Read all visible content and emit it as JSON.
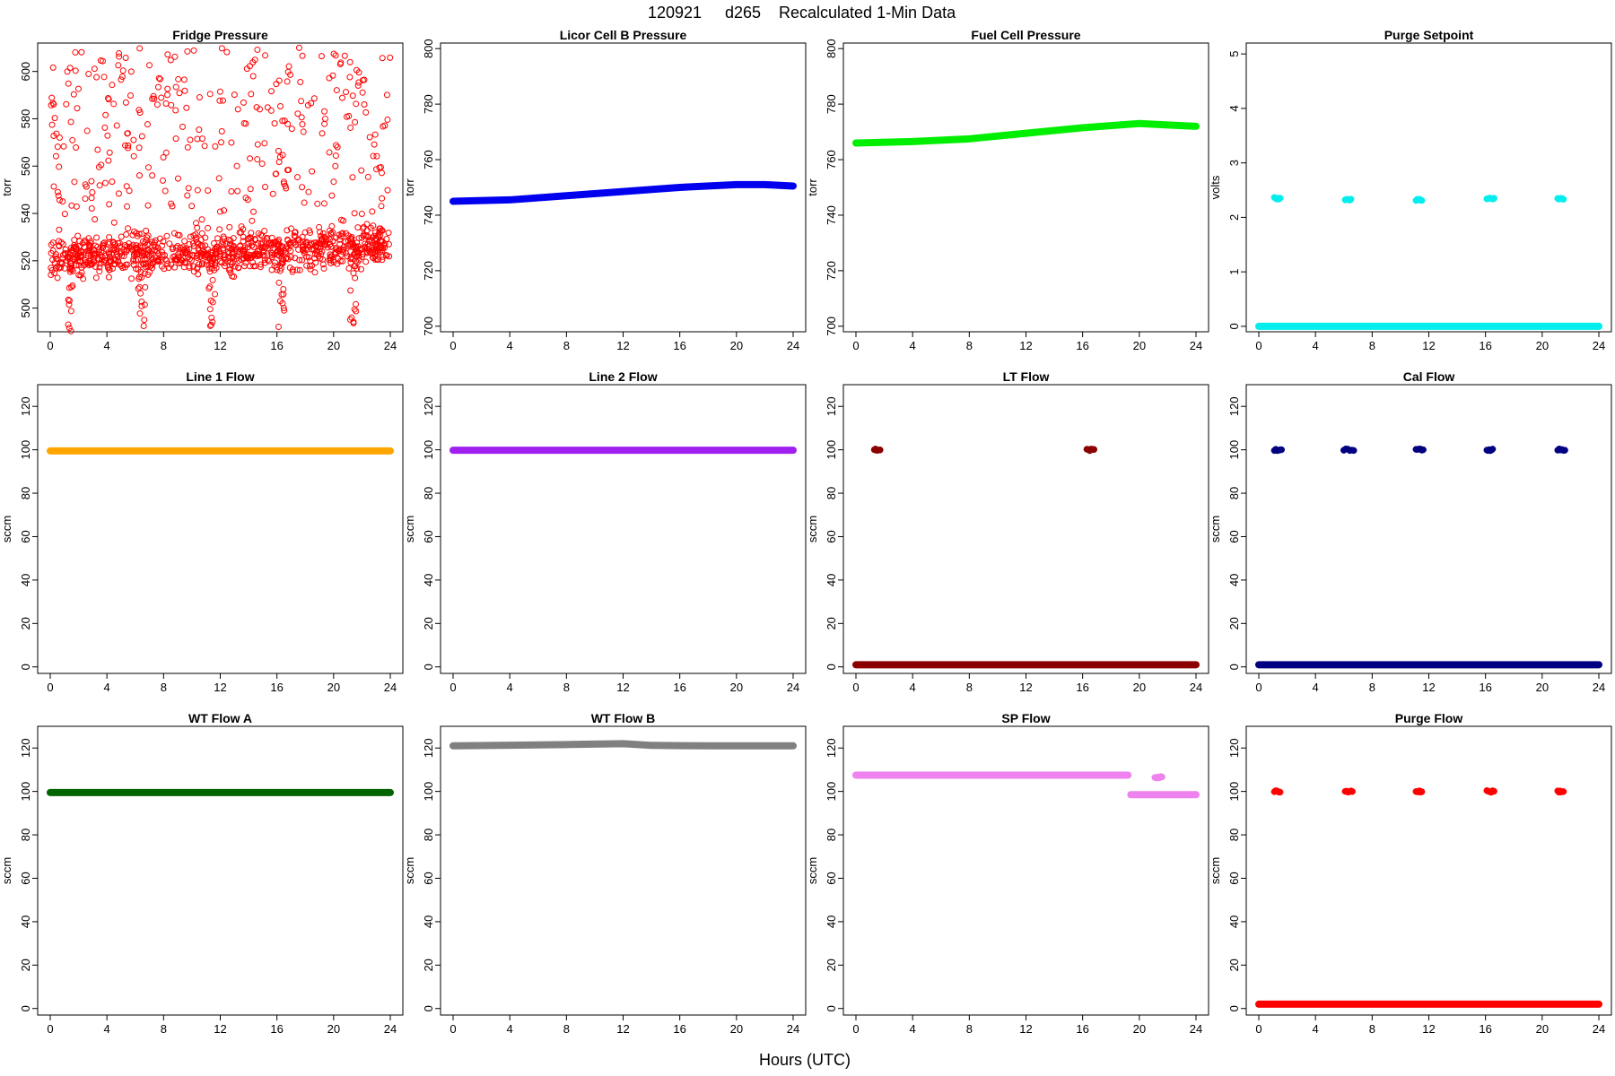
{
  "figure": {
    "title_date": "120921",
    "title_day": "d265",
    "title_desc": "Recalculated 1-Min Data",
    "xlabel": "Hours (UTC)"
  },
  "chart_data": [
    {
      "id": "fridge-pressure",
      "type": "scatter",
      "title": "Fridge Pressure",
      "ylabel": "torr",
      "color": "#ff0000",
      "marker": "open-circle",
      "xlim": [
        0,
        24
      ],
      "xticks": [
        0,
        4,
        8,
        12,
        16,
        20,
        24
      ],
      "ylim": [
        490,
        612
      ],
      "yticks": [
        500,
        520,
        540,
        560,
        580,
        600
      ],
      "series": [
        {
          "kind": "band",
          "x": [
            0,
            24
          ],
          "y": [
            521,
            526
          ],
          "spread": 9
        },
        {
          "kind": "scatter-range",
          "x": [
            0,
            24
          ],
          "y": [
            527,
            610
          ],
          "count": 320
        },
        {
          "kind": "dip",
          "x": [
            1.2,
            1.6
          ],
          "y": [
            490,
            525
          ]
        },
        {
          "kind": "dip",
          "x": [
            6.2,
            6.7
          ],
          "y": [
            491,
            525
          ]
        },
        {
          "kind": "dip",
          "x": [
            11.2,
            11.7
          ],
          "y": [
            492,
            525
          ]
        },
        {
          "kind": "dip",
          "x": [
            16.1,
            16.6
          ],
          "y": [
            492,
            525
          ]
        },
        {
          "kind": "dip",
          "x": [
            21.1,
            21.6
          ],
          "y": [
            493,
            525
          ]
        }
      ]
    },
    {
      "id": "licor-cell-b-pressure",
      "type": "line",
      "title": "Licor Cell B Pressure",
      "ylabel": "torr",
      "color": "#0000ee",
      "xlim": [
        0,
        24
      ],
      "xticks": [
        0,
        4,
        8,
        12,
        16,
        20,
        24
      ],
      "ylim": [
        698,
        802
      ],
      "yticks": [
        700,
        720,
        740,
        760,
        780,
        800
      ],
      "series": [
        {
          "x": [
            0,
            4,
            8,
            12,
            16,
            20,
            22,
            24
          ],
          "y": [
            745,
            745.5,
            747,
            748.5,
            750,
            751,
            751,
            750.5
          ]
        }
      ]
    },
    {
      "id": "fuel-cell-pressure",
      "type": "line",
      "title": "Fuel Cell Pressure",
      "ylabel": "torr",
      "color": "#00ee00",
      "xlim": [
        0,
        24
      ],
      "xticks": [
        0,
        4,
        8,
        12,
        16,
        20,
        24
      ],
      "ylim": [
        698,
        802
      ],
      "yticks": [
        700,
        720,
        740,
        760,
        780,
        800
      ],
      "series": [
        {
          "x": [
            0,
            4,
            8,
            12,
            16,
            20,
            22,
            24
          ],
          "y": [
            766,
            766.5,
            767.5,
            769.5,
            771.5,
            773,
            772.5,
            772
          ]
        }
      ]
    },
    {
      "id": "purge-setpoint",
      "type": "scatter",
      "title": "Purge Setpoint",
      "ylabel": "volts",
      "color": "#00eeee",
      "xlim": [
        0,
        24
      ],
      "xticks": [
        0,
        4,
        8,
        12,
        16,
        20,
        24
      ],
      "ylim": [
        -0.1,
        5.2
      ],
      "yticks": [
        0,
        1,
        2,
        3,
        4,
        5
      ],
      "series": [
        {
          "kind": "line",
          "x": [
            0,
            24
          ],
          "y": [
            0,
            0
          ]
        },
        {
          "kind": "cluster",
          "x": [
            1.1,
            1.5
          ],
          "y": [
            2.35,
            2.35
          ]
        },
        {
          "kind": "cluster",
          "x": [
            6.1,
            6.5
          ],
          "y": [
            2.33,
            2.33
          ]
        },
        {
          "kind": "cluster",
          "x": [
            11.1,
            11.5
          ],
          "y": [
            2.32,
            2.32
          ]
        },
        {
          "kind": "cluster",
          "x": [
            16.1,
            16.6
          ],
          "y": [
            2.35,
            2.35
          ]
        },
        {
          "kind": "cluster",
          "x": [
            21.1,
            21.5
          ],
          "y": [
            2.34,
            2.34
          ]
        }
      ]
    },
    {
      "id": "line-1-flow",
      "type": "line",
      "title": "Line 1 Flow",
      "ylabel": "sccm",
      "color": "#ffa500",
      "xlim": [
        0,
        24
      ],
      "xticks": [
        0,
        4,
        8,
        12,
        16,
        20,
        24
      ],
      "ylim": [
        -3,
        130
      ],
      "yticks": [
        0,
        20,
        40,
        60,
        80,
        100,
        120
      ],
      "series": [
        {
          "x": [
            0,
            24
          ],
          "y": [
            99.5,
            99.5
          ]
        }
      ]
    },
    {
      "id": "line-2-flow",
      "type": "line",
      "title": "Line 2 Flow",
      "ylabel": "sccm",
      "color": "#a020f0",
      "xlim": [
        0,
        24
      ],
      "xticks": [
        0,
        4,
        8,
        12,
        16,
        20,
        24
      ],
      "ylim": [
        -3,
        130
      ],
      "yticks": [
        0,
        20,
        40,
        60,
        80,
        100,
        120
      ],
      "series": [
        {
          "x": [
            0,
            24
          ],
          "y": [
            99.8,
            99.8
          ]
        }
      ]
    },
    {
      "id": "lt-flow",
      "type": "scatter",
      "title": "LT Flow",
      "ylabel": "sccm",
      "color": "#8b0000",
      "xlim": [
        0,
        24
      ],
      "xticks": [
        0,
        4,
        8,
        12,
        16,
        20,
        24
      ],
      "ylim": [
        -3,
        130
      ],
      "yticks": [
        0,
        20,
        40,
        60,
        80,
        100,
        120
      ],
      "series": [
        {
          "kind": "line",
          "x": [
            0,
            24
          ],
          "y": [
            1,
            1
          ]
        },
        {
          "kind": "cluster",
          "x": [
            1.3,
            1.7
          ],
          "y": [
            100,
            100
          ]
        },
        {
          "kind": "cluster",
          "x": [
            16.3,
            16.8
          ],
          "y": [
            100,
            100
          ]
        }
      ]
    },
    {
      "id": "cal-flow",
      "type": "scatter",
      "title": "Cal Flow",
      "ylabel": "sccm",
      "color": "#000080",
      "xlim": [
        0,
        24
      ],
      "xticks": [
        0,
        4,
        8,
        12,
        16,
        20,
        24
      ],
      "ylim": [
        -3,
        130
      ],
      "yticks": [
        0,
        20,
        40,
        60,
        80,
        100,
        120
      ],
      "series": [
        {
          "kind": "line",
          "x": [
            0,
            24
          ],
          "y": [
            1,
            1
          ]
        },
        {
          "kind": "cluster",
          "x": [
            1.1,
            1.6
          ],
          "y": [
            100,
            100
          ]
        },
        {
          "kind": "cluster",
          "x": [
            6.0,
            6.7
          ],
          "y": [
            100,
            100
          ]
        },
        {
          "kind": "cluster",
          "x": [
            11.1,
            11.6
          ],
          "y": [
            100,
            100
          ]
        },
        {
          "kind": "cluster",
          "x": [
            16.1,
            16.5
          ],
          "y": [
            100,
            100
          ]
        },
        {
          "kind": "cluster",
          "x": [
            21.1,
            21.6
          ],
          "y": [
            100,
            100
          ]
        }
      ]
    },
    {
      "id": "wt-flow-a",
      "type": "line",
      "title": "WT Flow A",
      "ylabel": "sccm",
      "color": "#006400",
      "xlim": [
        0,
        24
      ],
      "xticks": [
        0,
        4,
        8,
        12,
        16,
        20,
        24
      ],
      "ylim": [
        -3,
        130
      ],
      "yticks": [
        0,
        20,
        40,
        60,
        80,
        100,
        120
      ],
      "series": [
        {
          "x": [
            0,
            24
          ],
          "y": [
            99.5,
            99.5
          ]
        }
      ]
    },
    {
      "id": "wt-flow-b",
      "type": "line",
      "title": "WT Flow B",
      "ylabel": "sccm",
      "color": "#808080",
      "xlim": [
        0,
        24
      ],
      "xticks": [
        0,
        4,
        8,
        12,
        16,
        20,
        24
      ],
      "ylim": [
        -3,
        130
      ],
      "yticks": [
        0,
        20,
        40,
        60,
        80,
        100,
        120
      ],
      "series": [
        {
          "x": [
            0,
            4,
            8,
            12,
            14,
            18,
            24
          ],
          "y": [
            121,
            121.3,
            121.6,
            122,
            121.2,
            121,
            121
          ]
        }
      ]
    },
    {
      "id": "sp-flow",
      "type": "scatter",
      "title": "SP Flow",
      "ylabel": "sccm",
      "color": "#ee82ee",
      "xlim": [
        0,
        24
      ],
      "xticks": [
        0,
        4,
        8,
        12,
        16,
        20,
        24
      ],
      "ylim": [
        -3,
        130
      ],
      "yticks": [
        0,
        20,
        40,
        60,
        80,
        100,
        120
      ],
      "series": [
        {
          "kind": "line",
          "x": [
            0,
            19.2
          ],
          "y": [
            107.5,
            107.5
          ]
        },
        {
          "kind": "cluster",
          "x": [
            21.1,
            21.6
          ],
          "y": [
            106.5,
            106.5
          ]
        },
        {
          "kind": "line",
          "x": [
            19.4,
            24
          ],
          "y": [
            98.5,
            98.5
          ]
        }
      ]
    },
    {
      "id": "purge-flow",
      "type": "scatter",
      "title": "Purge Flow",
      "ylabel": "sccm",
      "color": "#ff0000",
      "xlim": [
        0,
        24
      ],
      "xticks": [
        0,
        4,
        8,
        12,
        16,
        20,
        24
      ],
      "ylim": [
        -3,
        130
      ],
      "yticks": [
        0,
        20,
        40,
        60,
        80,
        100,
        120
      ],
      "series": [
        {
          "kind": "line",
          "x": [
            0,
            24
          ],
          "y": [
            2,
            2
          ]
        },
        {
          "kind": "cluster",
          "x": [
            1.1,
            1.5
          ],
          "y": [
            100,
            100
          ]
        },
        {
          "kind": "cluster",
          "x": [
            6.1,
            6.6
          ],
          "y": [
            100,
            100
          ]
        },
        {
          "kind": "cluster",
          "x": [
            11.1,
            11.5
          ],
          "y": [
            100,
            100
          ]
        },
        {
          "kind": "cluster",
          "x": [
            16.1,
            16.6
          ],
          "y": [
            100,
            100
          ]
        },
        {
          "kind": "cluster",
          "x": [
            21.1,
            21.5
          ],
          "y": [
            100,
            100
          ]
        }
      ]
    }
  ]
}
